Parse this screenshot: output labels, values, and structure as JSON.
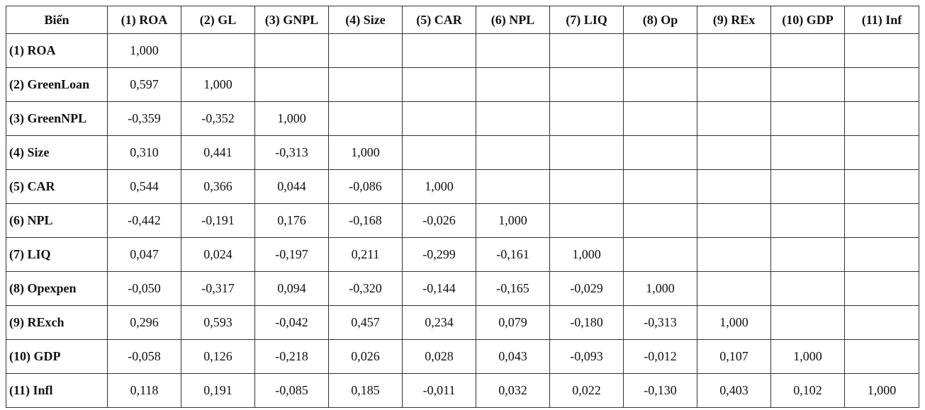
{
  "table": {
    "headers": [
      "Biến",
      "(1) ROA",
      "(2) GL",
      "(3) GNPL",
      "(4) Size",
      "(5) CAR",
      "(6) NPL",
      "(7) LIQ",
      "(8) Op",
      "(9) REx",
      "(10) GDP",
      "(11) Inf"
    ],
    "rows": [
      {
        "label": "(1) ROA",
        "values": [
          "1,000",
          "",
          "",
          "",
          "",
          "",
          "",
          "",
          "",
          "",
          ""
        ]
      },
      {
        "label": "(2) GreenLoan",
        "values": [
          "0,597",
          "1,000",
          "",
          "",
          "",
          "",
          "",
          "",
          "",
          "",
          ""
        ]
      },
      {
        "label": "(3) GreenNPL",
        "values": [
          "-0,359",
          "-0,352",
          "1,000",
          "",
          "",
          "",
          "",
          "",
          "",
          "",
          ""
        ]
      },
      {
        "label": "(4) Size",
        "values": [
          "0,310",
          "0,441",
          "-0,313",
          "1,000",
          "",
          "",
          "",
          "",
          "",
          "",
          ""
        ]
      },
      {
        "label": "(5) CAR",
        "values": [
          "0,544",
          "0,366",
          "0,044",
          "-0,086",
          "1,000",
          "",
          "",
          "",
          "",
          "",
          ""
        ]
      },
      {
        "label": "(6) NPL",
        "values": [
          "-0,442",
          "-0,191",
          "0,176",
          "-0,168",
          "-0,026",
          "1,000",
          "",
          "",
          "",
          "",
          ""
        ]
      },
      {
        "label": "(7) LIQ",
        "values": [
          "0,047",
          "0,024",
          "-0,197",
          "0,211",
          "-0,299",
          "-0,161",
          "1,000",
          "",
          "",
          "",
          ""
        ]
      },
      {
        "label": "(8) Opexpen",
        "values": [
          "-0,050",
          "-0,317",
          "0,094",
          "-0,320",
          "-0,144",
          "-0,165",
          "-0,029",
          "1,000",
          "",
          "",
          ""
        ]
      },
      {
        "label": "(9) RExch",
        "values": [
          "0,296",
          "0,593",
          "-0,042",
          "0,457",
          "0,234",
          "0,079",
          "-0,180",
          "-0,313",
          "1,000",
          "",
          ""
        ]
      },
      {
        "label": "(10) GDP",
        "values": [
          "-0,058",
          "0,126",
          "-0,218",
          "0,026",
          "0,028",
          "0,043",
          "-0,093",
          "-0,012",
          "0,107",
          "1,000",
          ""
        ]
      },
      {
        "label": "(11) Infl",
        "values": [
          "0,118",
          "0,191",
          "-0,085",
          "0,185",
          "-0,011",
          "0,032",
          "0,022",
          "-0,130",
          "0,403",
          "0,102",
          "1,000"
        ]
      }
    ]
  }
}
